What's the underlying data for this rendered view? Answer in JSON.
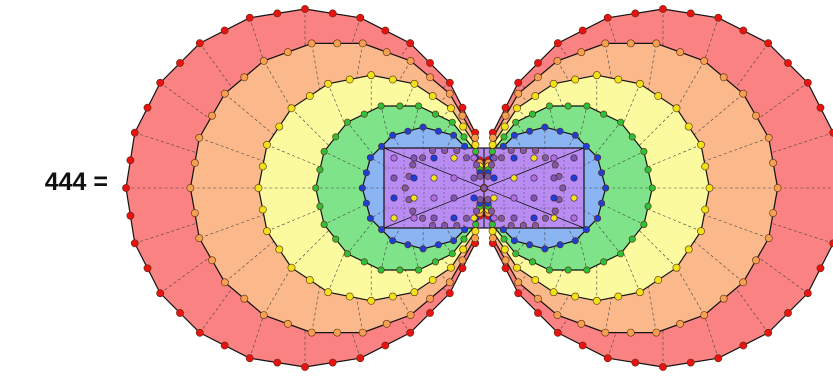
{
  "equation": {
    "label": "444 ="
  },
  "diagram": {
    "layers": [
      {
        "name": "outer-red",
        "sides": 20,
        "fill": "#fb8282",
        "dot": "#e81212"
      },
      {
        "name": "orange",
        "sides": 18,
        "fill": "#fbb88a",
        "dot": "#f5a050"
      },
      {
        "name": "yellow",
        "sides": 16,
        "fill": "#fbfa9e",
        "dot": "#f0e21a"
      },
      {
        "name": "green",
        "sides": 14,
        "fill": "#7ee389",
        "dot": "#2fbf3a"
      },
      {
        "name": "blue",
        "sides": 12,
        "fill": "#8bb4f3",
        "dot": "#1d3fd6"
      },
      {
        "name": "violet",
        "sides": 10,
        "fill": "#8c86c4",
        "dot": "#7d5aa8"
      },
      {
        "name": "central-purple",
        "sides": 4,
        "fill": "#b98cf3",
        "dot": "#b070d8"
      }
    ],
    "colors": {
      "outline": "#111111",
      "spoke": "#444444"
    }
  }
}
